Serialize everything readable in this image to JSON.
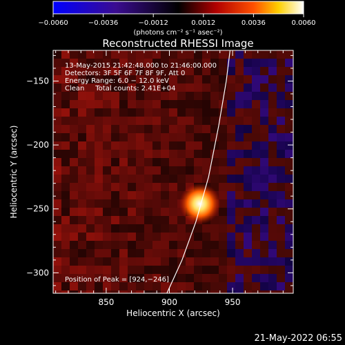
{
  "chart_data": {
    "type": "heatmap",
    "title": "Reconstructed RHESSI Image",
    "xlabel": "Heliocentric X (arcsec)",
    "ylabel": "Heliocentric Y (arcsec)",
    "xlim": [
      808,
      998
    ],
    "ylim": [
      -316,
      -126
    ],
    "x_ticks": [
      850,
      900,
      950
    ],
    "y_ticks": [
      -150,
      -200,
      -250,
      -300
    ],
    "x_tick_labels": [
      "850",
      "900",
      "950"
    ],
    "y_tick_labels": [
      "−150",
      "−200",
      "−250",
      "−300"
    ],
    "colorbar": {
      "range": [
        -0.006,
        0.006
      ],
      "ticks": [
        -0.006,
        -0.0036,
        -0.0012,
        0.0012,
        0.0036,
        0.006
      ],
      "tick_labels": [
        "−0.0060",
        "−0.0036",
        "−0.0012",
        "0.0012",
        "0.0036",
        "0.0060"
      ],
      "units": "(photons cm⁻² s⁻¹ asec⁻²)",
      "colors": [
        "#0000ff",
        "#2a0a8a",
        "#000000",
        "#b00000",
        "#ff5000",
        "#ffd000",
        "#ffffff"
      ]
    },
    "info_lines": [
      "13‑May‑2015 21:42:48.000 to 21:46:00.000",
      "Detectors: 3F 5F 6F 7F 8F 9F, Att 0",
      "Energy Range: 6.0 − 12.0 keV",
      "Clean     Total counts: 2.41E+04"
    ],
    "peak": {
      "x": 924,
      "y": -246,
      "label": "Position of Peak = [924,−246]"
    },
    "limb_points": [
      [
        898,
        -316
      ],
      [
        910,
        -290
      ],
      [
        921,
        -260
      ],
      [
        931,
        -225
      ],
      [
        939,
        -185
      ],
      [
        945,
        -150
      ],
      [
        948,
        -126
      ]
    ],
    "footer_date": "21‑May‑2022 06:55"
  }
}
